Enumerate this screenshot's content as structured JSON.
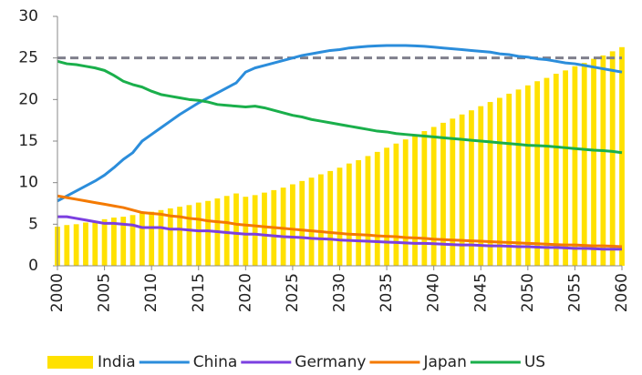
{
  "chart_data": {
    "type": "combo",
    "x": [
      2000,
      2001,
      2002,
      2003,
      2004,
      2005,
      2006,
      2007,
      2008,
      2009,
      2010,
      2011,
      2012,
      2013,
      2014,
      2015,
      2016,
      2017,
      2018,
      2019,
      2020,
      2021,
      2022,
      2023,
      2024,
      2025,
      2026,
      2027,
      2028,
      2029,
      2030,
      2031,
      2032,
      2033,
      2034,
      2035,
      2036,
      2037,
      2038,
      2039,
      2040,
      2041,
      2042,
      2043,
      2044,
      2045,
      2046,
      2047,
      2048,
      2049,
      2050,
      2051,
      2052,
      2053,
      2054,
      2055,
      2056,
      2057,
      2058,
      2059,
      2060
    ],
    "xlim": [
      2000,
      2060
    ],
    "xticks": [
      2000,
      2005,
      2010,
      2015,
      2020,
      2025,
      2030,
      2035,
      2040,
      2045,
      2050,
      2055,
      2060
    ],
    "ylim": [
      0,
      30
    ],
    "yticks": [
      0,
      5,
      10,
      15,
      20,
      25,
      30
    ],
    "reference_line": {
      "value": 25,
      "color": "#7f7f8c",
      "dashed": true
    },
    "series": [
      {
        "name": "India",
        "type": "bar",
        "color": "#ffe100",
        "values": [
          4.7,
          4.9,
          5.0,
          5.2,
          5.4,
          5.6,
          5.8,
          5.9,
          6.1,
          6.3,
          6.5,
          6.7,
          6.9,
          7.1,
          7.3,
          7.6,
          7.8,
          8.1,
          8.4,
          8.7,
          8.3,
          8.5,
          8.8,
          9.1,
          9.4,
          9.8,
          10.2,
          10.6,
          11.0,
          11.4,
          11.8,
          12.3,
          12.7,
          13.2,
          13.7,
          14.2,
          14.7,
          15.2,
          15.7,
          16.2,
          16.7,
          17.2,
          17.7,
          18.2,
          18.7,
          19.2,
          19.7,
          20.2,
          20.7,
          21.2,
          21.7,
          22.2,
          22.6,
          23.1,
          23.5,
          24.0,
          24.4,
          24.9,
          25.3,
          25.8,
          26.3
        ]
      },
      {
        "name": "China",
        "type": "line",
        "color": "#2b8ddb",
        "values": [
          7.8,
          8.4,
          9.0,
          9.6,
          10.2,
          10.9,
          11.8,
          12.8,
          13.6,
          15.0,
          15.8,
          16.6,
          17.4,
          18.2,
          18.9,
          19.6,
          20.2,
          20.8,
          21.4,
          22.0,
          23.3,
          23.8,
          24.1,
          24.4,
          24.7,
          25.0,
          25.3,
          25.5,
          25.7,
          25.9,
          26.0,
          26.2,
          26.3,
          26.4,
          26.45,
          26.5,
          26.5,
          26.5,
          26.45,
          26.4,
          26.3,
          26.2,
          26.1,
          26.0,
          25.9,
          25.8,
          25.7,
          25.5,
          25.4,
          25.2,
          25.1,
          24.9,
          24.8,
          24.6,
          24.4,
          24.3,
          24.1,
          23.9,
          23.7,
          23.5,
          23.3
        ]
      },
      {
        "name": "Germany",
        "type": "line",
        "color": "#7b3fe0",
        "values": [
          5.9,
          5.9,
          5.7,
          5.5,
          5.3,
          5.1,
          5.1,
          5.0,
          4.9,
          4.6,
          4.6,
          4.6,
          4.4,
          4.4,
          4.3,
          4.2,
          4.2,
          4.1,
          4.0,
          3.9,
          3.8,
          3.8,
          3.7,
          3.6,
          3.5,
          3.45,
          3.4,
          3.3,
          3.25,
          3.2,
          3.1,
          3.05,
          3.0,
          2.95,
          2.9,
          2.85,
          2.8,
          2.75,
          2.7,
          2.7,
          2.65,
          2.6,
          2.55,
          2.5,
          2.5,
          2.45,
          2.4,
          2.4,
          2.35,
          2.3,
          2.3,
          2.25,
          2.2,
          2.2,
          2.15,
          2.1,
          2.1,
          2.05,
          2.0,
          2.0,
          2.0
        ]
      },
      {
        "name": "Japan",
        "type": "line",
        "color": "#f47a00",
        "values": [
          8.4,
          8.2,
          8.0,
          7.8,
          7.6,
          7.4,
          7.2,
          7.0,
          6.7,
          6.4,
          6.3,
          6.2,
          6.0,
          5.9,
          5.7,
          5.6,
          5.4,
          5.3,
          5.2,
          5.0,
          4.9,
          4.8,
          4.7,
          4.6,
          4.5,
          4.4,
          4.3,
          4.2,
          4.1,
          4.0,
          3.9,
          3.8,
          3.75,
          3.7,
          3.6,
          3.55,
          3.5,
          3.4,
          3.35,
          3.3,
          3.2,
          3.15,
          3.1,
          3.05,
          3.0,
          2.95,
          2.9,
          2.85,
          2.8,
          2.75,
          2.7,
          2.65,
          2.6,
          2.55,
          2.5,
          2.5,
          2.45,
          2.4,
          2.4,
          2.35,
          2.3
        ]
      },
      {
        "name": "US",
        "type": "line",
        "color": "#1aaf4b",
        "values": [
          24.6,
          24.3,
          24.2,
          24.0,
          23.8,
          23.5,
          22.9,
          22.2,
          21.8,
          21.5,
          21.0,
          20.6,
          20.4,
          20.2,
          20.0,
          19.9,
          19.7,
          19.4,
          19.3,
          19.2,
          19.1,
          19.2,
          19.0,
          18.7,
          18.4,
          18.1,
          17.9,
          17.6,
          17.4,
          17.2,
          17.0,
          16.8,
          16.6,
          16.4,
          16.2,
          16.1,
          15.9,
          15.8,
          15.7,
          15.6,
          15.5,
          15.4,
          15.3,
          15.2,
          15.1,
          15.0,
          14.9,
          14.8,
          14.7,
          14.6,
          14.5,
          14.45,
          14.4,
          14.3,
          14.2,
          14.1,
          14.0,
          13.9,
          13.85,
          13.75,
          13.6
        ]
      }
    ]
  }
}
